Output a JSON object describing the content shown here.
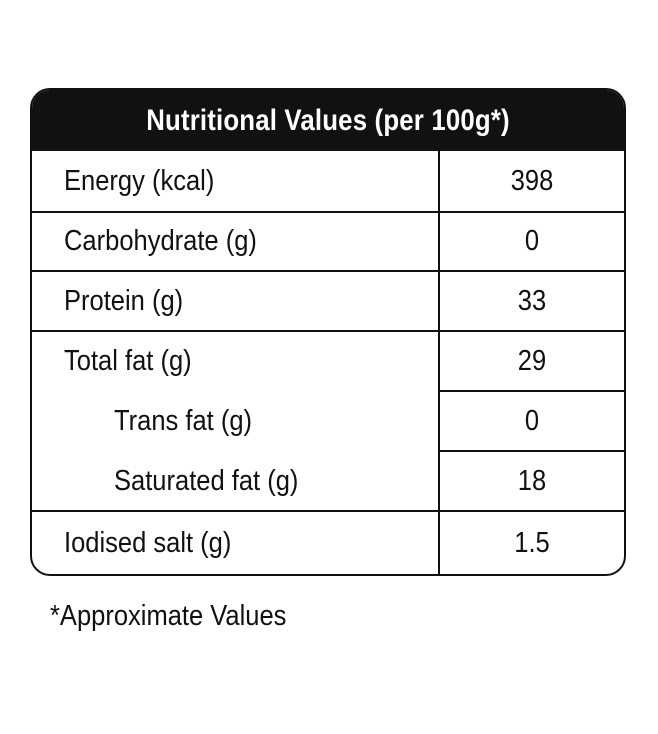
{
  "table": {
    "title": "Nutritional Values (per 100g*)",
    "rows": [
      {
        "label": "Energy (kcal)",
        "value": "398"
      },
      {
        "label": "Carbohydrate (g)",
        "value": "0"
      },
      {
        "label": "Protein (g)",
        "value": "33"
      },
      {
        "label": "Total fat (g)",
        "value": "29"
      },
      {
        "label": "Trans fat (g)",
        "value": "0"
      },
      {
        "label": "Saturated fat (g)",
        "value": "18"
      },
      {
        "label": "Iodised salt (g)",
        "value": "1.5"
      }
    ]
  },
  "footnote": "*Approximate Values"
}
